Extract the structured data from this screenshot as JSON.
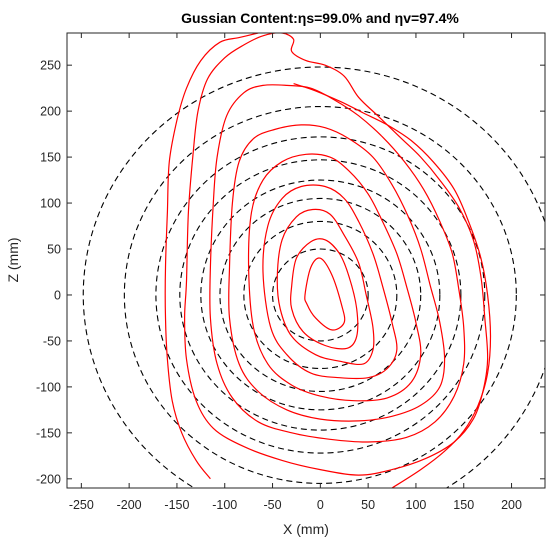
{
  "chart_data": {
    "type": "line",
    "title": "Gussian Content:ηs=99.0% and ηv=97.4%",
    "xlabel": "X (mm)",
    "ylabel": "Z (mm)",
    "xlim": [
      -265,
      235
    ],
    "ylim": [
      -210,
      285
    ],
    "xticks": [
      -250,
      -200,
      -150,
      -100,
      -50,
      0,
      50,
      100,
      150,
      200
    ],
    "yticks": [
      -200,
      -150,
      -100,
      -50,
      0,
      50,
      100,
      150,
      200,
      250
    ],
    "grid": false,
    "colors": {
      "measured": "#ff0000",
      "gaussian": "#000000"
    },
    "gaussian_circles": {
      "style": "dashed",
      "center": [
        0,
        0
      ],
      "radii": [
        50,
        80,
        105,
        125,
        147,
        172,
        205,
        248
      ]
    },
    "measured_contours": [
      {
        "points": [
          [
            -16,
            0
          ],
          [
            -10,
            30
          ],
          [
            0,
            40
          ],
          [
            12,
            22
          ],
          [
            22,
            -10
          ],
          [
            25,
            -30
          ],
          [
            12,
            -38
          ],
          [
            -5,
            -25
          ],
          [
            -14,
            -10
          ]
        ]
      },
      {
        "points": [
          [
            -30,
            10
          ],
          [
            -25,
            40
          ],
          [
            -10,
            58
          ],
          [
            5,
            60
          ],
          [
            20,
            45
          ],
          [
            30,
            20
          ],
          [
            38,
            -15
          ],
          [
            38,
            -45
          ],
          [
            28,
            -58
          ],
          [
            5,
            -55
          ],
          [
            -18,
            -40
          ],
          [
            -30,
            -15
          ]
        ]
      },
      {
        "points": [
          [
            -45,
            20
          ],
          [
            -40,
            60
          ],
          [
            -25,
            85
          ],
          [
            -8,
            93
          ],
          [
            10,
            88
          ],
          [
            25,
            65
          ],
          [
            40,
            35
          ],
          [
            48,
            0
          ],
          [
            55,
            -35
          ],
          [
            55,
            -60
          ],
          [
            45,
            -75
          ],
          [
            20,
            -72
          ],
          [
            -5,
            -65
          ],
          [
            -30,
            -45
          ],
          [
            -42,
            -15
          ]
        ]
      },
      {
        "points": [
          [
            -60,
            25
          ],
          [
            -55,
            75
          ],
          [
            -40,
            105
          ],
          [
            -20,
            118
          ],
          [
            5,
            118
          ],
          [
            25,
            105
          ],
          [
            40,
            80
          ],
          [
            55,
            45
          ],
          [
            65,
            10
          ],
          [
            75,
            -30
          ],
          [
            80,
            -60
          ],
          [
            70,
            -80
          ],
          [
            50,
            -90
          ],
          [
            20,
            -90
          ],
          [
            -10,
            -85
          ],
          [
            -35,
            -65
          ],
          [
            -52,
            -35
          ]
        ]
      },
      {
        "points": [
          [
            -75,
            30
          ],
          [
            -72,
            90
          ],
          [
            -60,
            125
          ],
          [
            -40,
            145
          ],
          [
            -15,
            153
          ],
          [
            10,
            150
          ],
          [
            30,
            135
          ],
          [
            50,
            110
          ],
          [
            65,
            80
          ],
          [
            80,
            45
          ],
          [
            90,
            10
          ],
          [
            100,
            -30
          ],
          [
            105,
            -65
          ],
          [
            95,
            -95
          ],
          [
            70,
            -112
          ],
          [
            35,
            -115
          ],
          [
            0,
            -110
          ],
          [
            -30,
            -98
          ],
          [
            -55,
            -75
          ],
          [
            -70,
            -35
          ]
        ]
      },
      {
        "points": [
          [
            -95,
            30
          ],
          [
            -92,
            100
          ],
          [
            -85,
            145
          ],
          [
            -70,
            170
          ],
          [
            -48,
            180
          ],
          [
            -20,
            185
          ],
          [
            5,
            182
          ],
          [
            30,
            170
          ],
          [
            55,
            150
          ],
          [
            75,
            120
          ],
          [
            92,
            85
          ],
          [
            105,
            50
          ],
          [
            115,
            10
          ],
          [
            125,
            -30
          ],
          [
            130,
            -70
          ],
          [
            125,
            -100
          ],
          [
            105,
            -120
          ],
          [
            75,
            -132
          ],
          [
            40,
            -137
          ],
          [
            0,
            -135
          ],
          [
            -35,
            -125
          ],
          [
            -65,
            -105
          ],
          [
            -85,
            -75
          ],
          [
            -95,
            -25
          ]
        ]
      },
      {
        "points": [
          [
            -115,
            30
          ],
          [
            -112,
            100
          ],
          [
            -108,
            150
          ],
          [
            -98,
            195
          ],
          [
            -80,
            220
          ],
          [
            -60,
            228
          ],
          [
            -35,
            228
          ],
          [
            -10,
            225
          ],
          [
            15,
            212
          ],
          [
            40,
            195
          ],
          [
            65,
            172
          ],
          [
            88,
            145
          ],
          [
            108,
            115
          ],
          [
            125,
            80
          ],
          [
            138,
            45
          ],
          [
            145,
            5
          ],
          [
            150,
            -35
          ],
          [
            150,
            -75
          ],
          [
            140,
            -110
          ],
          [
            120,
            -138
          ],
          [
            90,
            -155
          ],
          [
            50,
            -160
          ],
          [
            10,
            -157
          ],
          [
            -30,
            -150
          ],
          [
            -65,
            -138
          ],
          [
            -92,
            -112
          ],
          [
            -108,
            -75
          ],
          [
            -115,
            -25
          ]
        ]
      },
      {
        "points": [
          [
            -140,
            15
          ],
          [
            -138,
            90
          ],
          [
            -133,
            155
          ],
          [
            -128,
            200
          ],
          [
            -118,
            235
          ],
          [
            -100,
            258
          ],
          [
            -80,
            272
          ],
          [
            -60,
            282
          ],
          [
            -40,
            285
          ],
          [
            -28,
            278
          ],
          [
            -30,
            265
          ],
          [
            -15,
            255
          ],
          [
            5,
            250
          ],
          [
            25,
            238
          ],
          [
            40,
            215
          ],
          [
            60,
            195
          ],
          [
            85,
            170
          ],
          [
            105,
            150
          ],
          [
            125,
            125
          ],
          [
            145,
            95
          ],
          [
            160,
            60
          ],
          [
            168,
            20
          ],
          [
            172,
            -25
          ],
          [
            175,
            -70
          ],
          [
            170,
            -105
          ],
          [
            160,
            -135
          ],
          [
            140,
            -160
          ],
          [
            110,
            -178
          ],
          [
            75,
            -190
          ],
          [
            40,
            -196
          ],
          [
            0,
            -190
          ],
          [
            -40,
            -180
          ],
          [
            -80,
            -165
          ],
          [
            -112,
            -145
          ],
          [
            -130,
            -115
          ],
          [
            -140,
            -70
          ],
          [
            -142,
            -25
          ]
        ]
      },
      {
        "points": [
          [
            -115,
            -200
          ],
          [
            -130,
            -180
          ],
          [
            -145,
            -150
          ],
          [
            -155,
            -115
          ],
          [
            -160,
            -70
          ],
          [
            -162,
            -25
          ],
          [
            -162,
            30
          ],
          [
            -160,
            90
          ],
          [
            -158,
            145
          ],
          [
            -150,
            190
          ],
          [
            -140,
            225
          ],
          [
            -125,
            255
          ],
          [
            -105,
            275
          ],
          [
            -85,
            280
          ],
          [
            -65,
            285
          ]
        ]
      },
      {
        "points": [
          [
            75,
            -210
          ],
          [
            105,
            -190
          ],
          [
            130,
            -170
          ],
          [
            150,
            -148
          ],
          [
            165,
            -120
          ],
          [
            175,
            -85
          ],
          [
            178,
            -45
          ],
          [
            175,
            0
          ],
          [
            168,
            40
          ],
          [
            155,
            80
          ],
          [
            140,
            115
          ],
          [
            118,
            145
          ],
          [
            95,
            168
          ],
          [
            70,
            185
          ],
          [
            45,
            198
          ],
          [
            22,
            210
          ],
          [
            -5,
            222
          ],
          [
            -28,
            230
          ]
        ]
      }
    ]
  }
}
